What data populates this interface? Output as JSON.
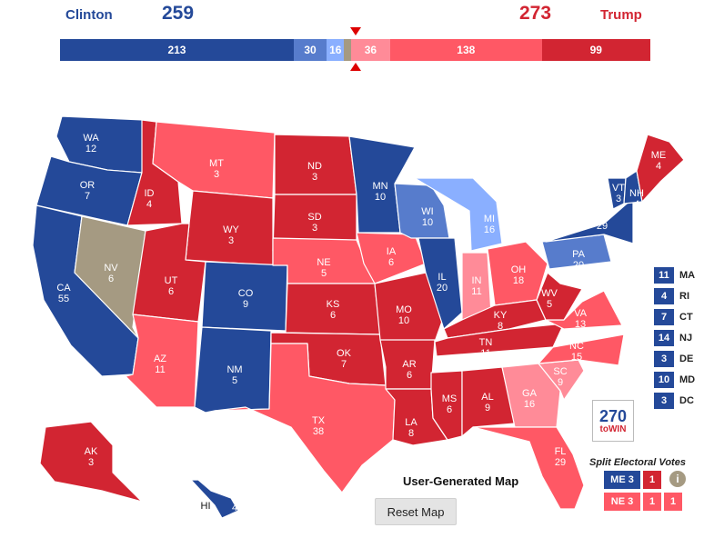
{
  "header": {
    "dem_name": "Clinton",
    "dem_votes": "259",
    "rep_name": "Trump",
    "rep_votes": "273",
    "dem_color": "#244999",
    "rep_color": "#d22532"
  },
  "bar_segments": [
    {
      "label": "213",
      "value": 213,
      "color": "#244999"
    },
    {
      "label": "30",
      "value": 30,
      "color": "#577ccc"
    },
    {
      "label": "16",
      "value": 16,
      "color": "#8aafff"
    },
    {
      "label": "",
      "value": 6,
      "color": "#a59a82"
    },
    {
      "label": "36",
      "value": 36,
      "color": "#ff8b98"
    },
    {
      "label": "138",
      "value": 138,
      "color": "#ff5865"
    },
    {
      "label": "99",
      "value": 99,
      "color": "#d22532"
    }
  ],
  "map_states": [
    {
      "abbr": "WA",
      "ev": "12",
      "color": "#244999"
    },
    {
      "abbr": "OR",
      "ev": "7",
      "color": "#244999"
    },
    {
      "abbr": "CA",
      "ev": "55",
      "color": "#244999"
    },
    {
      "abbr": "NV",
      "ev": "6",
      "color": "#a59a82"
    },
    {
      "abbr": "ID",
      "ev": "4",
      "color": "#d22532"
    },
    {
      "abbr": "MT",
      "ev": "3",
      "color": "#ff5865"
    },
    {
      "abbr": "WY",
      "ev": "3",
      "color": "#d22532"
    },
    {
      "abbr": "UT",
      "ev": "6",
      "color": "#d22532"
    },
    {
      "abbr": "AZ",
      "ev": "11",
      "color": "#ff5865"
    },
    {
      "abbr": "CO",
      "ev": "9",
      "color": "#244999"
    },
    {
      "abbr": "NM",
      "ev": "5",
      "color": "#244999"
    },
    {
      "abbr": "ND",
      "ev": "3",
      "color": "#d22532"
    },
    {
      "abbr": "SD",
      "ev": "3",
      "color": "#d22532"
    },
    {
      "abbr": "NE",
      "ev": "5",
      "color": "#ff5865"
    },
    {
      "abbr": "KS",
      "ev": "6",
      "color": "#d22532"
    },
    {
      "abbr": "OK",
      "ev": "7",
      "color": "#d22532"
    },
    {
      "abbr": "TX",
      "ev": "38",
      "color": "#ff5865"
    },
    {
      "abbr": "MN",
      "ev": "10",
      "color": "#244999"
    },
    {
      "abbr": "IA",
      "ev": "6",
      "color": "#ff5865"
    },
    {
      "abbr": "MO",
      "ev": "10",
      "color": "#d22532"
    },
    {
      "abbr": "AR",
      "ev": "6",
      "color": "#d22532"
    },
    {
      "abbr": "LA",
      "ev": "8",
      "color": "#d22532"
    },
    {
      "abbr": "WI",
      "ev": "10",
      "color": "#577ccc"
    },
    {
      "abbr": "IL",
      "ev": "20",
      "color": "#244999"
    },
    {
      "abbr": "MI",
      "ev": "16",
      "color": "#8aafff"
    },
    {
      "abbr": "IN",
      "ev": "11",
      "color": "#ff8b98"
    },
    {
      "abbr": "OH",
      "ev": "18",
      "color": "#ff5865"
    },
    {
      "abbr": "KY",
      "ev": "8",
      "color": "#d22532"
    },
    {
      "abbr": "TN",
      "ev": "11",
      "color": "#d22532"
    },
    {
      "abbr": "MS",
      "ev": "6",
      "color": "#d22532"
    },
    {
      "abbr": "AL",
      "ev": "9",
      "color": "#d22532"
    },
    {
      "abbr": "GA",
      "ev": "16",
      "color": "#ff8b98"
    },
    {
      "abbr": "FL",
      "ev": "29",
      "color": "#ff5865"
    },
    {
      "abbr": "SC",
      "ev": "9",
      "color": "#ff8b98"
    },
    {
      "abbr": "NC",
      "ev": "15",
      "color": "#ff5865"
    },
    {
      "abbr": "VA",
      "ev": "13",
      "color": "#ff5865"
    },
    {
      "abbr": "WV",
      "ev": "5",
      "color": "#d22532"
    },
    {
      "abbr": "PA",
      "ev": "20",
      "color": "#577ccc"
    },
    {
      "abbr": "NY",
      "ev": "29",
      "color": "#244999"
    },
    {
      "abbr": "VT",
      "ev": "3",
      "color": "#244999"
    },
    {
      "abbr": "NH",
      "ev": "4",
      "color": "#244999"
    },
    {
      "abbr": "ME",
      "ev": "4",
      "color": "#d22532"
    },
    {
      "abbr": "AK",
      "ev": "3",
      "color": "#d22532"
    },
    {
      "abbr": "HI",
      "ev": "4",
      "color": "#244999"
    }
  ],
  "small_states": [
    {
      "ev": "11",
      "abbr": "MA",
      "color": "#244999"
    },
    {
      "ev": "4",
      "abbr": "RI",
      "color": "#244999"
    },
    {
      "ev": "7",
      "abbr": "CT",
      "color": "#244999"
    },
    {
      "ev": "14",
      "abbr": "NJ",
      "color": "#244999"
    },
    {
      "ev": "3",
      "abbr": "DE",
      "color": "#244999"
    },
    {
      "ev": "10",
      "abbr": "MD",
      "color": "#244999"
    },
    {
      "ev": "3",
      "abbr": "DC",
      "color": "#244999"
    }
  ],
  "logo": {
    "big": "270",
    "small": "toWIN"
  },
  "split": {
    "title": "Split Electoral Votes",
    "me": {
      "label": "ME 3",
      "d1": "1",
      "label_color": "#244999",
      "d1_color": "#d22532"
    },
    "ne": {
      "label": "NE 3",
      "d1": "1",
      "d2": "1",
      "color": "#ff5865"
    },
    "info_icon": "info-icon"
  },
  "map_title": "User-Generated Map",
  "reset_label": "Reset Map"
}
